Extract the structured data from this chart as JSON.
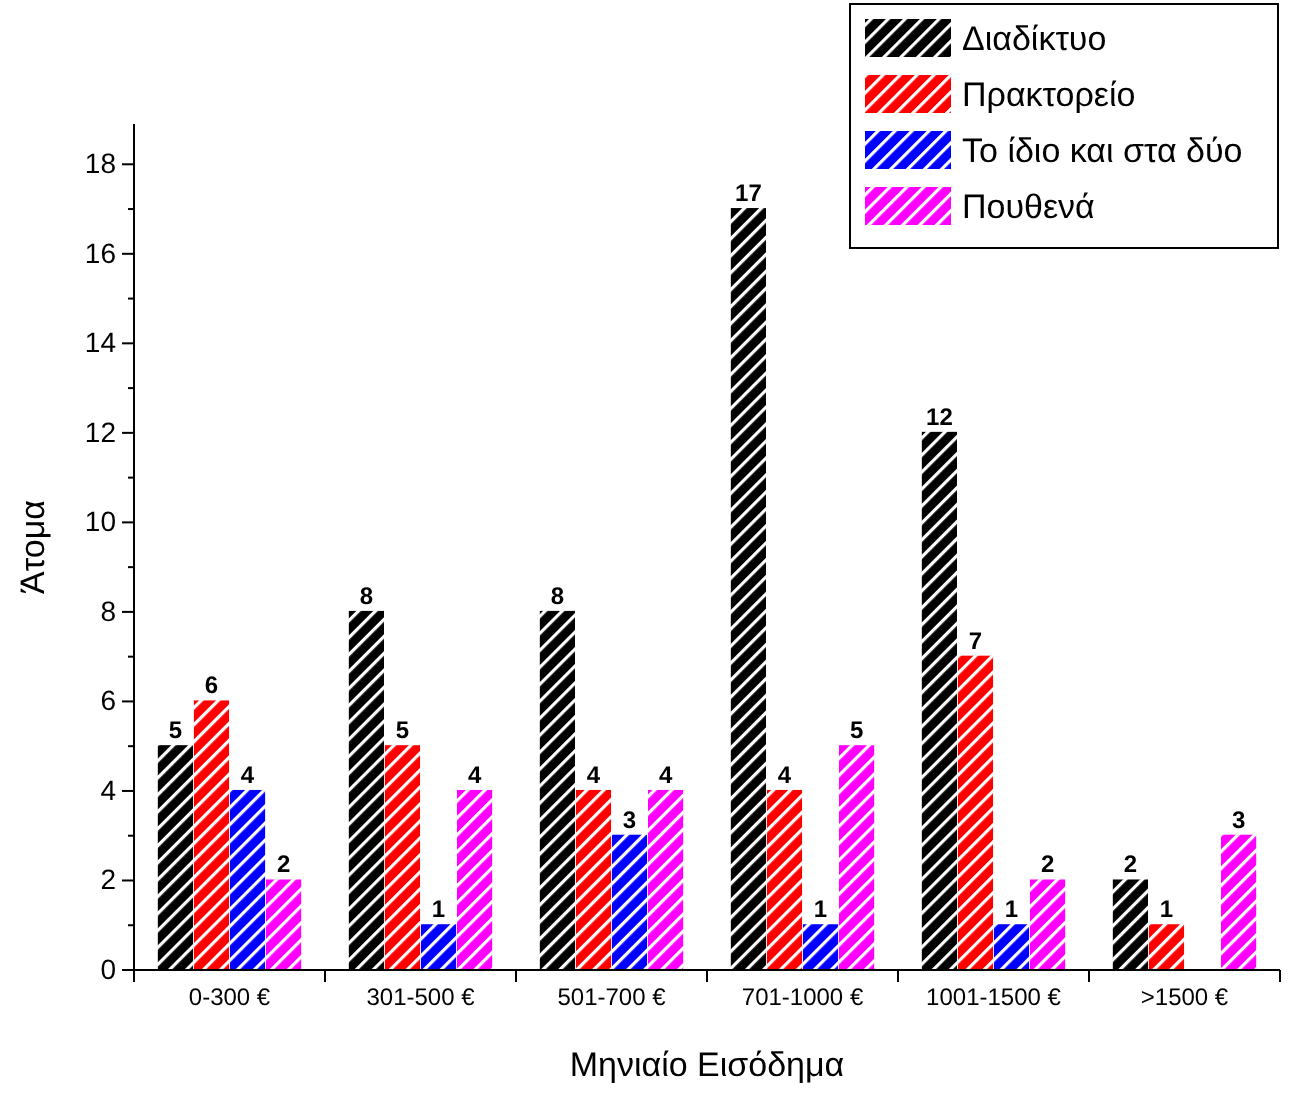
{
  "chart_data": {
    "type": "bar",
    "xlabel": "Μηνιαίο Εισόδημα",
    "ylabel": "Άτομα",
    "categories": [
      "0-300 €",
      "301-500 €",
      "501-700 €",
      "701-1000 €",
      "1001-1500 €",
      ">1500 €"
    ],
    "series": [
      {
        "name": "Διαδίκτυο",
        "color": "#000000",
        "values": [
          5,
          8,
          8,
          17,
          12,
          2
        ]
      },
      {
        "name": "Πρακτορείο",
        "color": "#ff0000",
        "values": [
          6,
          5,
          4,
          4,
          7,
          1
        ]
      },
      {
        "name": "Το ίδιο και στα δύο",
        "color": "#0000ff",
        "values": [
          4,
          1,
          3,
          1,
          1,
          null
        ]
      },
      {
        "name": "Πουθενά",
        "color": "#ff00ff",
        "values": [
          2,
          4,
          4,
          5,
          2,
          3
        ]
      }
    ],
    "ylim": [
      0,
      18.9
    ],
    "yticks": [
      0,
      2,
      4,
      6,
      8,
      10,
      12,
      14,
      16,
      18
    ],
    "data_labels": true,
    "legend": "top right",
    "grid": false
  }
}
